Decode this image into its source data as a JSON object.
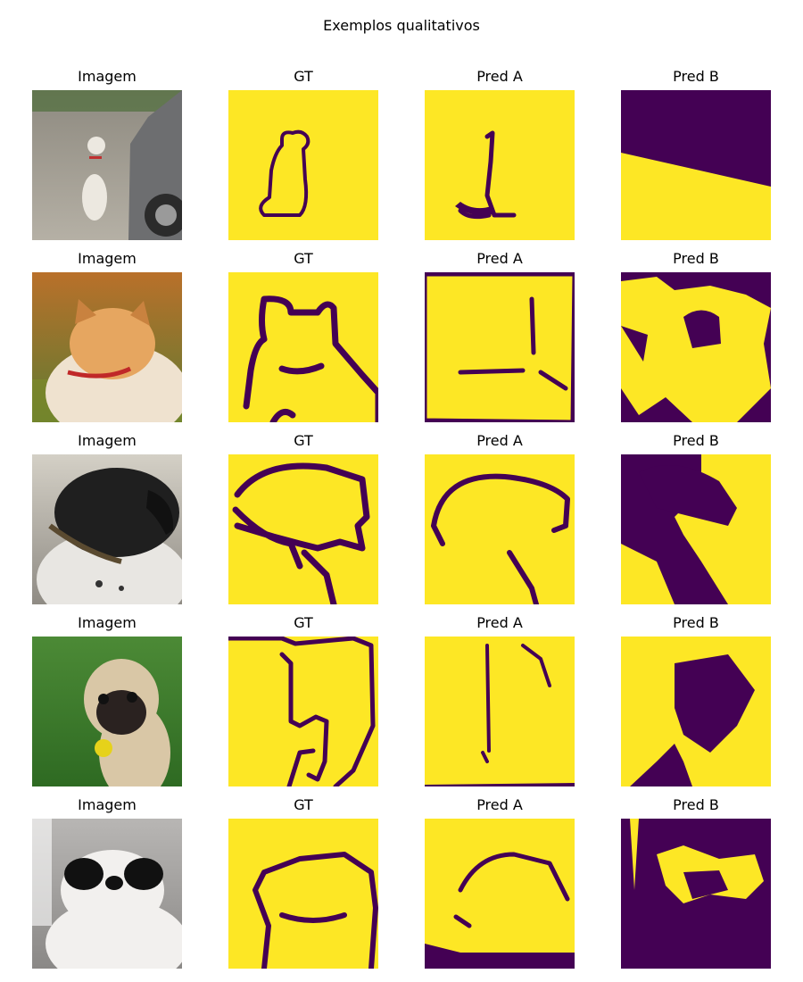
{
  "figure": {
    "title": "Exemplos qualitativos"
  },
  "columns": [
    "Imagem",
    "GT",
    "Pred A",
    "Pred B"
  ],
  "colors": {
    "mask_foreground": "#fde725",
    "mask_background": "#440154"
  },
  "rows": [
    {
      "subject": "white-dog-on-road"
    },
    {
      "subject": "shiba-inu"
    },
    {
      "subject": "black-spotted-dog"
    },
    {
      "subject": "pug-on-grass"
    },
    {
      "subject": "black-white-small-dog"
    }
  ]
}
